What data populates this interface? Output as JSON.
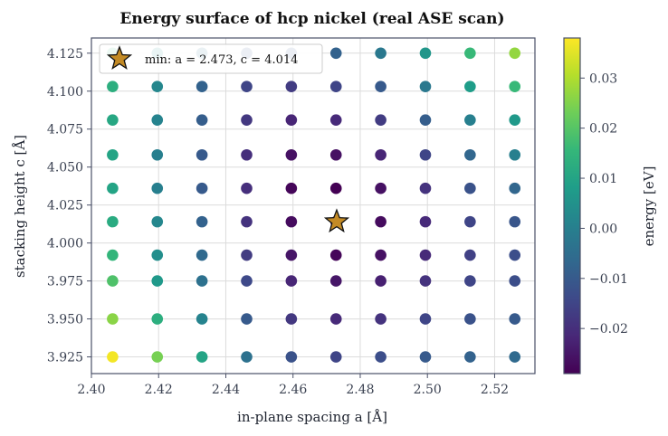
{
  "chart_data": {
    "type": "scatter",
    "title": "Energy surface of hcp nickel (real ASE scan)",
    "xlabel": "in-plane spacing  a  [Å]",
    "ylabel": "stacking height  c  [Å]",
    "xlim": [
      2.4,
      2.532
    ],
    "ylim": [
      3.914,
      4.135
    ],
    "x_ticks": [
      2.4,
      2.42,
      2.44,
      2.46,
      2.48,
      2.5,
      2.52
    ],
    "y_ticks": [
      3.925,
      3.95,
      3.975,
      4.0,
      4.025,
      4.05,
      4.075,
      4.1,
      4.125
    ],
    "x_tick_labels": [
      "2.40",
      "2.42",
      "2.44",
      "2.46",
      "2.48",
      "2.50",
      "2.52"
    ],
    "y_tick_labels": [
      "3.925",
      "3.950",
      "3.975",
      "4.000",
      "4.025",
      "4.050",
      "4.075",
      "4.100",
      "4.125"
    ],
    "grid": true,
    "a_values": [
      2.4063,
      2.4196,
      2.4329,
      2.4462,
      2.4595,
      2.4728,
      2.4861,
      2.4994,
      2.5127,
      2.526
    ],
    "c_values": [
      3.925,
      3.95,
      3.975,
      3.992,
      4.014,
      4.036,
      4.058,
      4.081,
      4.103,
      4.125
    ],
    "energy_grid": [
      [
        0.037,
        0.024,
        0.01,
        -0.004,
        -0.012,
        -0.015,
        -0.013,
        -0.01,
        -0.008,
        -0.006
      ],
      [
        0.026,
        0.013,
        0.001,
        -0.01,
        -0.018,
        -0.021,
        -0.019,
        -0.015,
        -0.012,
        -0.01
      ],
      [
        0.019,
        0.007,
        -0.004,
        -0.014,
        -0.022,
        -0.025,
        -0.023,
        -0.019,
        -0.015,
        -0.013
      ],
      [
        0.015,
        0.004,
        -0.006,
        -0.017,
        -0.025,
        -0.028,
        -0.026,
        -0.021,
        -0.016,
        -0.013
      ],
      [
        0.012,
        0.002,
        -0.008,
        -0.019,
        -0.027,
        -0.029,
        -0.027,
        -0.021,
        -0.015,
        -0.011
      ],
      [
        0.01,
        0.0,
        -0.01,
        -0.02,
        -0.028,
        -0.029,
        -0.026,
        -0.019,
        -0.012,
        -0.007
      ],
      [
        0.01,
        0.0,
        -0.01,
        -0.02,
        -0.026,
        -0.026,
        -0.022,
        -0.015,
        -0.007,
        0.0
      ],
      [
        0.011,
        0.001,
        -0.009,
        -0.018,
        -0.022,
        -0.021,
        -0.017,
        -0.009,
        0.0,
        0.007
      ],
      [
        0.013,
        0.002,
        -0.008,
        -0.015,
        -0.017,
        -0.015,
        -0.01,
        -0.002,
        0.008,
        0.016
      ],
      [
        0.015,
        0.005,
        -0.005,
        -0.011,
        -0.011,
        -0.008,
        -0.002,
        0.006,
        0.016,
        0.027
      ]
    ],
    "minimum": {
      "a": 2.473,
      "c": 4.014
    },
    "legend": {
      "label": "min: a = 2.473, c = 4.014",
      "placement": "top-left"
    },
    "colorbar": {
      "label": "energy  [eV]",
      "range": [
        -0.029,
        0.038
      ],
      "ticks": [
        0.03,
        0.02,
        0.01,
        0.0,
        -0.01,
        -0.02
      ],
      "tick_labels": [
        "0.03",
        "0.02",
        "0.01",
        "0.00",
        "−0.01",
        "−0.02"
      ],
      "colormap": "viridis"
    },
    "colors": {
      "viridis": [
        "#440154",
        "#482878",
        "#3e4989",
        "#31688e",
        "#26828e",
        "#1f9e89",
        "#35b779",
        "#6ece58",
        "#b5de2b",
        "#fde725"
      ],
      "star_fill": "#c38a25",
      "star_stroke": "#111111"
    }
  }
}
